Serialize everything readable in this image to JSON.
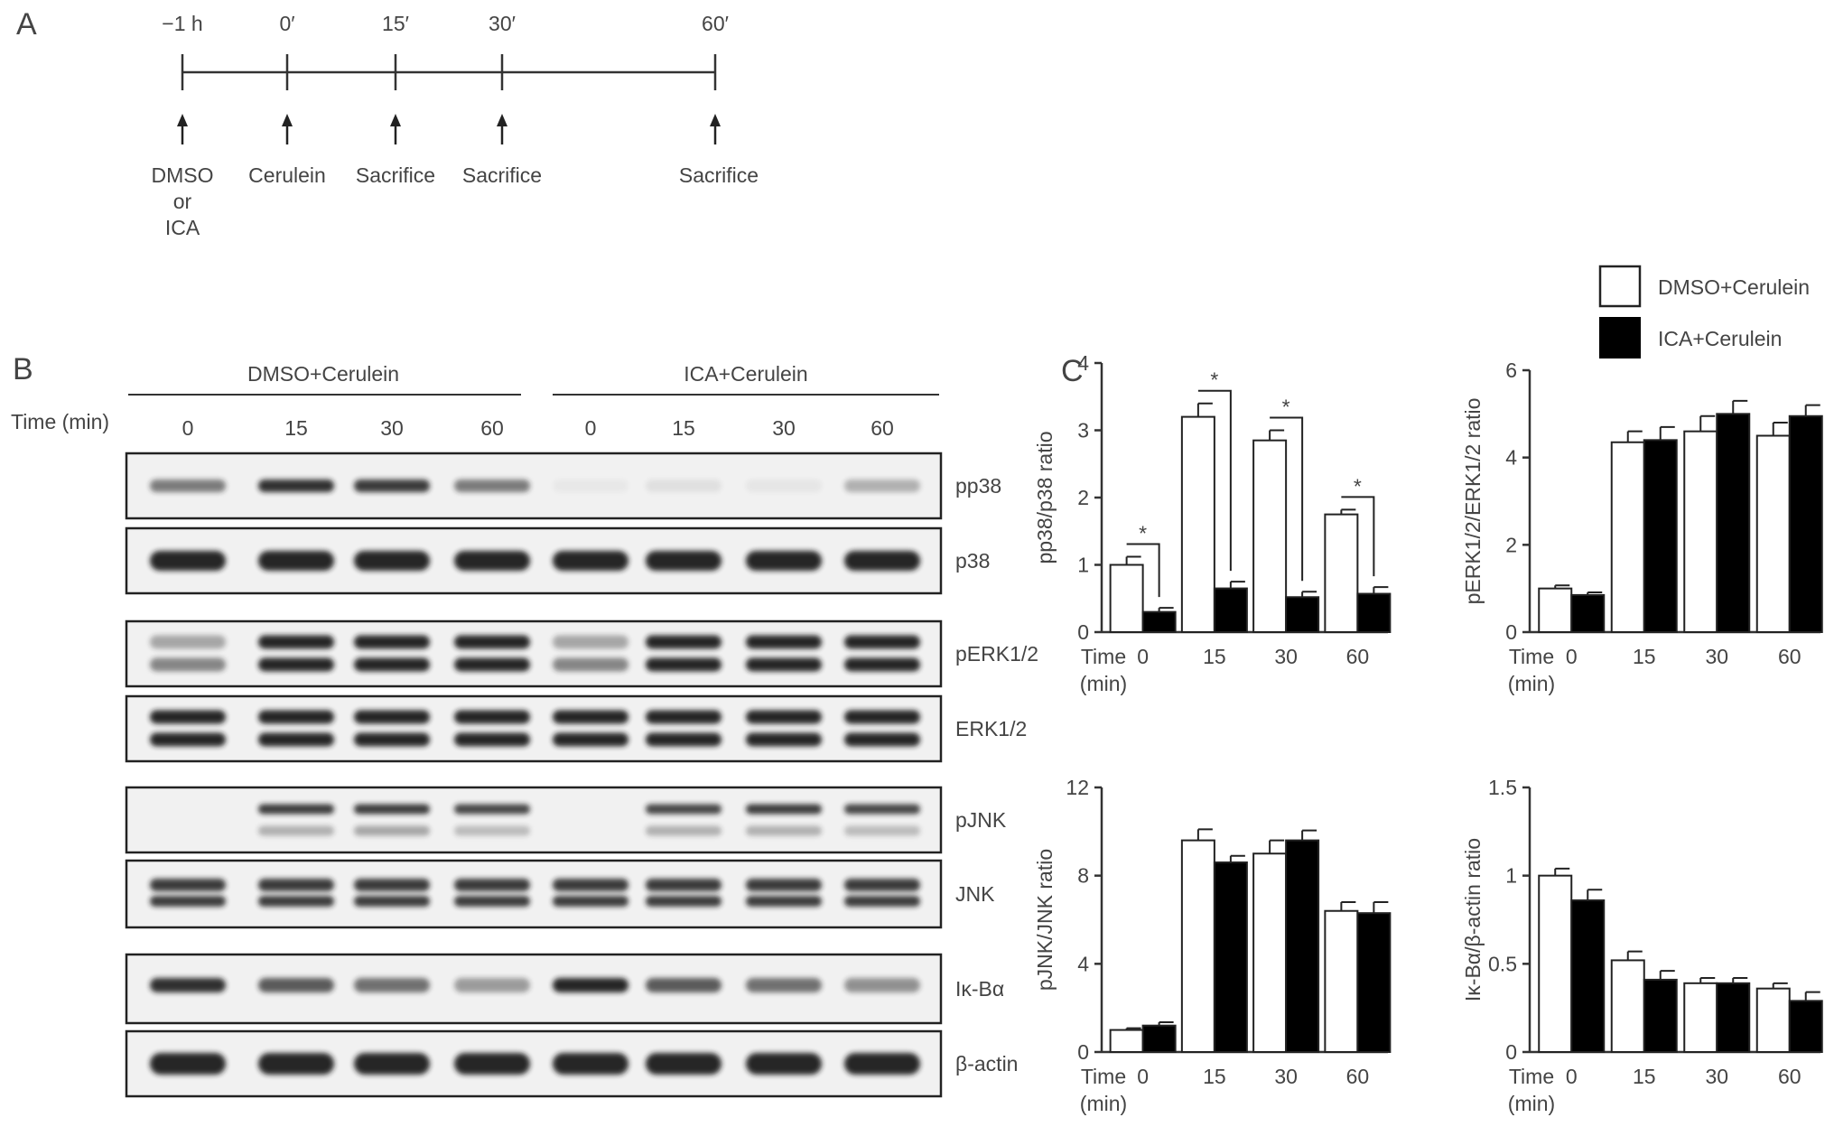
{
  "panel_a": {
    "letter": "A",
    "times": [
      "−1 h",
      "0′",
      "15′",
      "30′",
      "60′"
    ],
    "events": [
      [
        "DMSO",
        "or",
        "ICA"
      ],
      [
        "Cerulein"
      ],
      [
        "Sacrifice"
      ],
      [
        "Sacrifice"
      ],
      [
        "Sacrifice"
      ]
    ]
  },
  "panel_b": {
    "letter": "B",
    "groups": [
      "DMSO+Cerulein",
      "ICA+Cerulein"
    ],
    "time_label": "Time (min)",
    "lane_times": [
      "0",
      "15",
      "30",
      "60",
      "0",
      "15",
      "30",
      "60"
    ],
    "blots": [
      "pp38",
      "p38",
      "pERK1/2",
      "ERK1/2",
      "pJNK",
      "JNK",
      "Iκ-Bα",
      "β-actin"
    ]
  },
  "panel_c": {
    "letter": "C",
    "legend": [
      "DMSO+Cerulein",
      "ICA+Cerulein"
    ],
    "colors": {
      "dmso": "#ffffff",
      "ica": "#000000",
      "axis": "#444444"
    },
    "x_title": [
      "Time",
      "(min)"
    ]
  },
  "chart_data": [
    {
      "type": "bar",
      "ylabel": "pp38/p38 ratio",
      "categories": [
        "0",
        "15",
        "30",
        "60"
      ],
      "ylim": [
        0,
        4
      ],
      "yticks": [
        "0",
        "1",
        "2",
        "3",
        "4"
      ],
      "series": [
        {
          "name": "DMSO+Cerulein",
          "values": [
            1.0,
            3.2,
            2.85,
            1.75
          ],
          "err": [
            0.12,
            0.2,
            0.15,
            0.07
          ]
        },
        {
          "name": "ICA+Cerulein",
          "values": [
            0.3,
            0.65,
            0.52,
            0.57
          ],
          "err": [
            0.06,
            0.1,
            0.08,
            0.1
          ]
        }
      ],
      "significance": [
        "*",
        "*",
        "*",
        "*"
      ]
    },
    {
      "type": "bar",
      "ylabel": "pERK1/2/ERK1/2 ratio",
      "categories": [
        "0",
        "15",
        "30",
        "60"
      ],
      "ylim": [
        0,
        6
      ],
      "yticks": [
        "0",
        "2",
        "4",
        "6"
      ],
      "series": [
        {
          "name": "DMSO+Cerulein",
          "values": [
            1.0,
            4.35,
            4.6,
            4.5
          ],
          "err": [
            0.07,
            0.25,
            0.35,
            0.3
          ]
        },
        {
          "name": "ICA+Cerulein",
          "values": [
            0.85,
            4.4,
            5.0,
            4.95
          ],
          "err": [
            0.06,
            0.3,
            0.3,
            0.25
          ]
        }
      ]
    },
    {
      "type": "bar",
      "ylabel": "pJNK/JNK ratio",
      "categories": [
        "0",
        "15",
        "30",
        "60"
      ],
      "ylim": [
        0,
        12
      ],
      "yticks": [
        "0",
        "4",
        "8",
        "12"
      ],
      "series": [
        {
          "name": "DMSO+Cerulein",
          "values": [
            1.0,
            9.6,
            9.0,
            6.4
          ],
          "err": [
            0.08,
            0.5,
            0.6,
            0.4
          ]
        },
        {
          "name": "ICA+Cerulein",
          "values": [
            1.2,
            8.6,
            9.6,
            6.3
          ],
          "err": [
            0.15,
            0.3,
            0.45,
            0.5
          ]
        }
      ]
    },
    {
      "type": "bar",
      "ylabel": "Iκ-Bα/β-actin ratio",
      "categories": [
        "0",
        "15",
        "30",
        "60"
      ],
      "ylim": [
        0,
        1.5
      ],
      "yticks": [
        "0",
        "0.5",
        "1",
        "1.5"
      ],
      "series": [
        {
          "name": "DMSO+Cerulein",
          "values": [
            1.0,
            0.52,
            0.39,
            0.36
          ],
          "err": [
            0.04,
            0.05,
            0.03,
            0.03
          ]
        },
        {
          "name": "ICA+Cerulein",
          "values": [
            0.86,
            0.41,
            0.39,
            0.29
          ],
          "err": [
            0.06,
            0.05,
            0.03,
            0.05
          ]
        }
      ]
    }
  ]
}
